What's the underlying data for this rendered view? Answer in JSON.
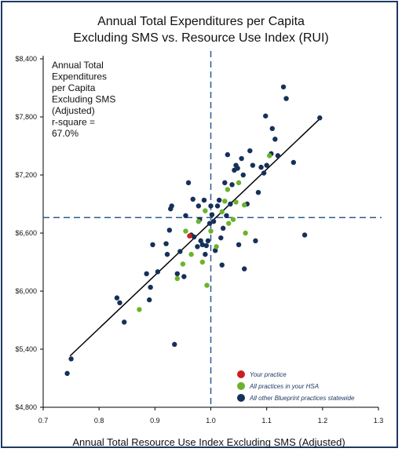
{
  "chart_data": {
    "type": "scatter",
    "title_line1": "Annual Total Expenditures per Capita",
    "title_line2": "Excluding SMS vs. Resource Use Index (RUI)",
    "xlabel": "Annual Total Resource Use Index Excluding SMS (Adjusted)",
    "ylabel": "",
    "xlim": [
      0.7,
      1.3
    ],
    "ylim": [
      4800,
      8400
    ],
    "x_ticks": [
      "0.7",
      "0.8",
      "0.9",
      "1.0",
      "1.1",
      "1.2",
      "1.3"
    ],
    "y_ticks": [
      "$4,800",
      "$5,400",
      "$6,000",
      "$6,600",
      "$7,200",
      "$7,800",
      "$8,400"
    ],
    "y_tick_values": [
      4800,
      5400,
      6000,
      6600,
      7200,
      7800,
      8400
    ],
    "x_tick_values": [
      0.7,
      0.8,
      0.9,
      1.0,
      1.1,
      1.2,
      1.3
    ],
    "reference_lines": {
      "x": 1.0,
      "y": 6760
    },
    "annotation": [
      "Annual Total",
      "Expenditures",
      "per Capita",
      "Excluding SMS",
      "(Adjusted)",
      "r-square =",
      "67.0%"
    ],
    "regression_line": {
      "x": [
        0.748,
        1.195
      ],
      "y": [
        5330,
        7780
      ]
    },
    "colors": {
      "your_practice": "#cc1f1f",
      "hsa": "#6cb22b",
      "statewide": "#15305a",
      "reference_line": "#2c5a92",
      "regression": "#000000"
    },
    "legend": [
      {
        "label": "Your practice",
        "color": "#cc1f1f"
      },
      {
        "label": "All practices in your HSA",
        "color": "#6cb22b"
      },
      {
        "label": "All other Blueprint practices statewide",
        "color": "#15305a"
      }
    ],
    "series": [
      {
        "name": "Your practice",
        "color": "#cc1f1f",
        "points": [
          [
            0.962,
            6570
          ]
        ]
      },
      {
        "name": "All practices in your HSA",
        "color": "#6cb22b",
        "points": [
          [
            0.872,
            5810
          ],
          [
            0.94,
            6130
          ],
          [
            0.95,
            6280
          ],
          [
            0.955,
            6620
          ],
          [
            0.965,
            6380
          ],
          [
            0.978,
            6720
          ],
          [
            0.985,
            6300
          ],
          [
            0.99,
            6830
          ],
          [
            0.993,
            6060
          ],
          [
            1.0,
            6620
          ],
          [
            1.01,
            6460
          ],
          [
            1.02,
            6820
          ],
          [
            1.025,
            6930
          ],
          [
            1.03,
            7050
          ],
          [
            1.032,
            6700
          ],
          [
            1.04,
            6740
          ],
          [
            1.045,
            6920
          ],
          [
            1.05,
            7120
          ],
          [
            1.06,
            6890
          ],
          [
            1.062,
            6600
          ],
          [
            1.105,
            7400
          ]
        ]
      },
      {
        "name": "All other Blueprint practices statewide",
        "color": "#15305a",
        "points": [
          [
            0.743,
            5150
          ],
          [
            0.75,
            5300
          ],
          [
            0.832,
            5930
          ],
          [
            0.837,
            5880
          ],
          [
            0.845,
            5680
          ],
          [
            0.885,
            6180
          ],
          [
            0.89,
            5910
          ],
          [
            0.892,
            6040
          ],
          [
            0.896,
            6480
          ],
          [
            0.905,
            6200
          ],
          [
            0.92,
            6490
          ],
          [
            0.922,
            6380
          ],
          [
            0.926,
            6630
          ],
          [
            0.928,
            6850
          ],
          [
            0.93,
            6880
          ],
          [
            0.935,
            5450
          ],
          [
            0.94,
            6180
          ],
          [
            0.945,
            6410
          ],
          [
            0.952,
            6150
          ],
          [
            0.955,
            6780
          ],
          [
            0.96,
            7120
          ],
          [
            0.965,
            6580
          ],
          [
            0.968,
            6950
          ],
          [
            0.97,
            6560
          ],
          [
            0.976,
            6460
          ],
          [
            0.978,
            6880
          ],
          [
            0.98,
            6740
          ],
          [
            0.982,
            6520
          ],
          [
            0.985,
            6480
          ],
          [
            0.988,
            6940
          ],
          [
            0.99,
            6380
          ],
          [
            0.992,
            6470
          ],
          [
            0.995,
            6520
          ],
          [
            0.998,
            6700
          ],
          [
            1.0,
            6880
          ],
          [
            1.002,
            6790
          ],
          [
            1.005,
            6720
          ],
          [
            1.008,
            6420
          ],
          [
            1.012,
            6880
          ],
          [
            1.015,
            6940
          ],
          [
            1.018,
            6550
          ],
          [
            1.02,
            6270
          ],
          [
            1.022,
            6650
          ],
          [
            1.025,
            7120
          ],
          [
            1.028,
            6780
          ],
          [
            1.03,
            7410
          ],
          [
            1.035,
            6900
          ],
          [
            1.038,
            7100
          ],
          [
            1.042,
            7250
          ],
          [
            1.045,
            7300
          ],
          [
            1.048,
            7270
          ],
          [
            1.05,
            6480
          ],
          [
            1.055,
            7370
          ],
          [
            1.058,
            7200
          ],
          [
            1.06,
            6230
          ],
          [
            1.065,
            6900
          ],
          [
            1.07,
            7450
          ],
          [
            1.075,
            7300
          ],
          [
            1.08,
            6520
          ],
          [
            1.085,
            7020
          ],
          [
            1.09,
            7280
          ],
          [
            1.095,
            7220
          ],
          [
            1.098,
            7810
          ],
          [
            1.1,
            7300
          ],
          [
            1.108,
            7420
          ],
          [
            1.11,
            7680
          ],
          [
            1.115,
            7570
          ],
          [
            1.12,
            7400
          ],
          [
            1.13,
            8110
          ],
          [
            1.135,
            7990
          ],
          [
            1.148,
            7330
          ],
          [
            1.168,
            6580
          ],
          [
            1.195,
            7790
          ]
        ]
      }
    ]
  }
}
